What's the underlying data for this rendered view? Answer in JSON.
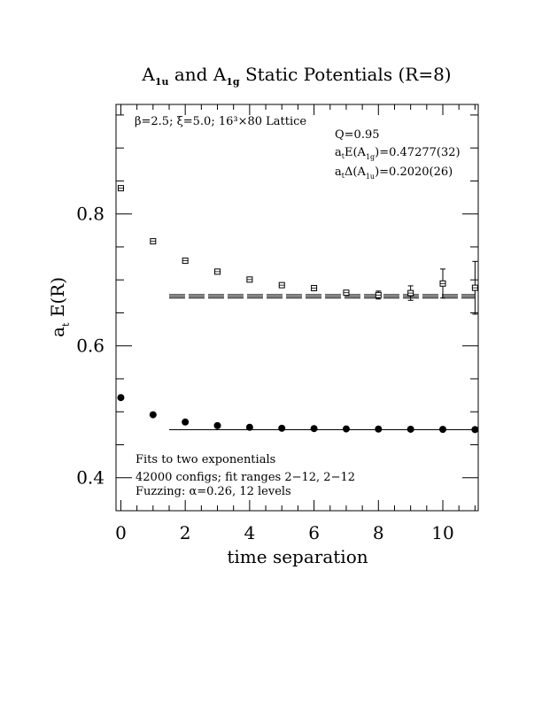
{
  "chart_data": {
    "type": "scatter",
    "title": {
      "main_a": "A",
      "main_a_sub": "1u",
      "main_and": " and ",
      "main_b": "A",
      "main_b_sub": "1g",
      "main_rest": " Static Potentials (R=8)"
    },
    "xlabel": "time separation",
    "ylabel": {
      "base": "a",
      "sub": "t",
      "rest": " E(R)"
    },
    "xlim": [
      -0.15,
      11.1
    ],
    "ylim": [
      0.35,
      0.966
    ],
    "xticks": [
      0,
      2,
      4,
      6,
      8,
      10
    ],
    "xtick_labels": [
      "0",
      "2",
      "4",
      "6",
      "8",
      "10"
    ],
    "yticks": [
      0.4,
      0.6,
      0.8
    ],
    "ytick_labels": [
      "0.4",
      "0.6",
      "0.8"
    ],
    "x_minor_step": 0.5,
    "y_minor_step": 0.05,
    "annotations": {
      "lattice": "β=2.5; ξ=5.0; 16³×80 Lattice",
      "q": "Q=0.95",
      "e_base": "a",
      "e_sub": "t",
      "e_mid": "E(A",
      "e_sub2": "1g",
      "e_val": ")=0.47277(32)",
      "d_base": "a",
      "d_sub": "t",
      "d_mid": "Δ(A",
      "d_sub2": "1u",
      "d_val": ")=0.2020(26)",
      "fits": "Fits to two exponentials",
      "configs": "42000 configs; fit ranges 2−12, 2−12",
      "fuzzing": "Fuzzing: α=0.26, 12 levels"
    },
    "series": [
      {
        "marker": "filled-circle",
        "x": [
          0,
          1,
          2,
          3,
          4,
          5,
          6,
          7,
          8,
          9,
          10,
          11
        ],
        "y": [
          0.5215,
          0.4955,
          0.4845,
          0.479,
          0.4765,
          0.475,
          0.4745,
          0.474,
          0.4738,
          0.4735,
          0.4733,
          0.473
        ],
        "err": [
          0,
          0,
          0,
          0,
          0,
          0,
          0,
          0,
          0,
          0,
          0,
          0
        ]
      },
      {
        "marker": "open-square",
        "x": [
          0,
          1,
          2,
          3,
          4,
          5,
          6,
          7,
          8,
          9,
          10,
          11
        ],
        "y": [
          0.839,
          0.7585,
          0.729,
          0.7125,
          0.7005,
          0.692,
          0.6875,
          0.6805,
          0.677,
          0.68,
          0.6945,
          0.688
        ],
        "err": [
          0,
          0,
          0,
          0,
          0,
          0,
          0,
          0.003,
          0.006,
          0.011,
          0.022,
          0.04
        ]
      }
    ],
    "fits": [
      {
        "x_range": [
          1.5,
          11
        ],
        "center": 0.47277,
        "half_width": 0.00032
      },
      {
        "x_range": [
          1.5,
          11
        ],
        "center": 0.67497,
        "half_width": 0.0026
      }
    ]
  }
}
